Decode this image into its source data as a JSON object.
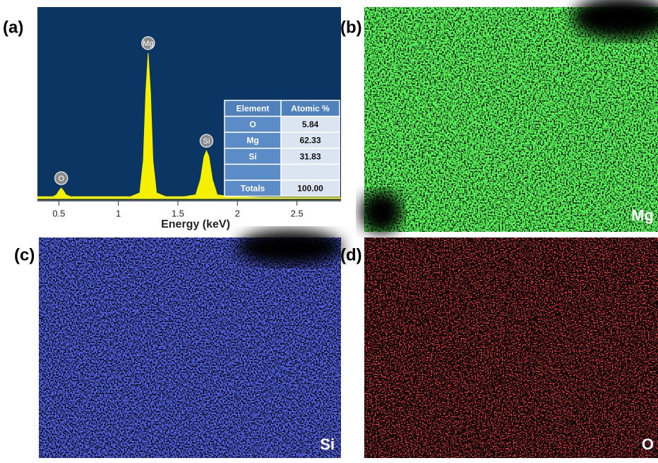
{
  "chart_data": {
    "type": "line",
    "x_label": "Energy (keV)",
    "x": [
      0.32,
      0.45,
      0.48,
      0.5,
      0.52,
      0.54,
      0.56,
      0.6,
      0.7,
      0.9,
      1.1,
      1.18,
      1.21,
      1.23,
      1.25,
      1.27,
      1.29,
      1.32,
      1.4,
      1.55,
      1.65,
      1.69,
      1.72,
      1.74,
      1.76,
      1.79,
      1.83,
      1.95,
      2.2,
      2.5,
      2.87
    ],
    "values": [
      1,
      1,
      2,
      4,
      5.5,
      4,
      2,
      1,
      1,
      1,
      1,
      3,
      20,
      55,
      76,
      55,
      20,
      3,
      1,
      1,
      2,
      10,
      22,
      25,
      22,
      10,
      2,
      1,
      0.5,
      0.5,
      0.5
    ],
    "color": "#f5f000",
    "background": "#0b3563",
    "xlim": [
      0.32,
      2.87
    ],
    "xticks": [
      0.5,
      1,
      1.5,
      2,
      2.5
    ],
    "ylim": [
      0,
      100
    ],
    "annotations": [
      {
        "text": "O",
        "x": 0.52,
        "y": 5.5
      },
      {
        "text": "Mg",
        "x": 1.25,
        "y": 76
      },
      {
        "text": "Si",
        "x": 1.74,
        "y": 25
      }
    ]
  },
  "table": {
    "header": [
      "Element",
      "Atomic %"
    ],
    "rows": [
      [
        "O",
        "5.84"
      ],
      [
        "Mg",
        "62.33"
      ],
      [
        "Si",
        "31.83"
      ],
      [
        null,
        null
      ],
      [
        "Totals",
        "100.00"
      ]
    ]
  },
  "panels": {
    "a": "(a)",
    "b": "(b)",
    "c": "(c)",
    "d": "(d)"
  },
  "maps": {
    "b": "Mg",
    "c": "Si",
    "d": "O"
  }
}
